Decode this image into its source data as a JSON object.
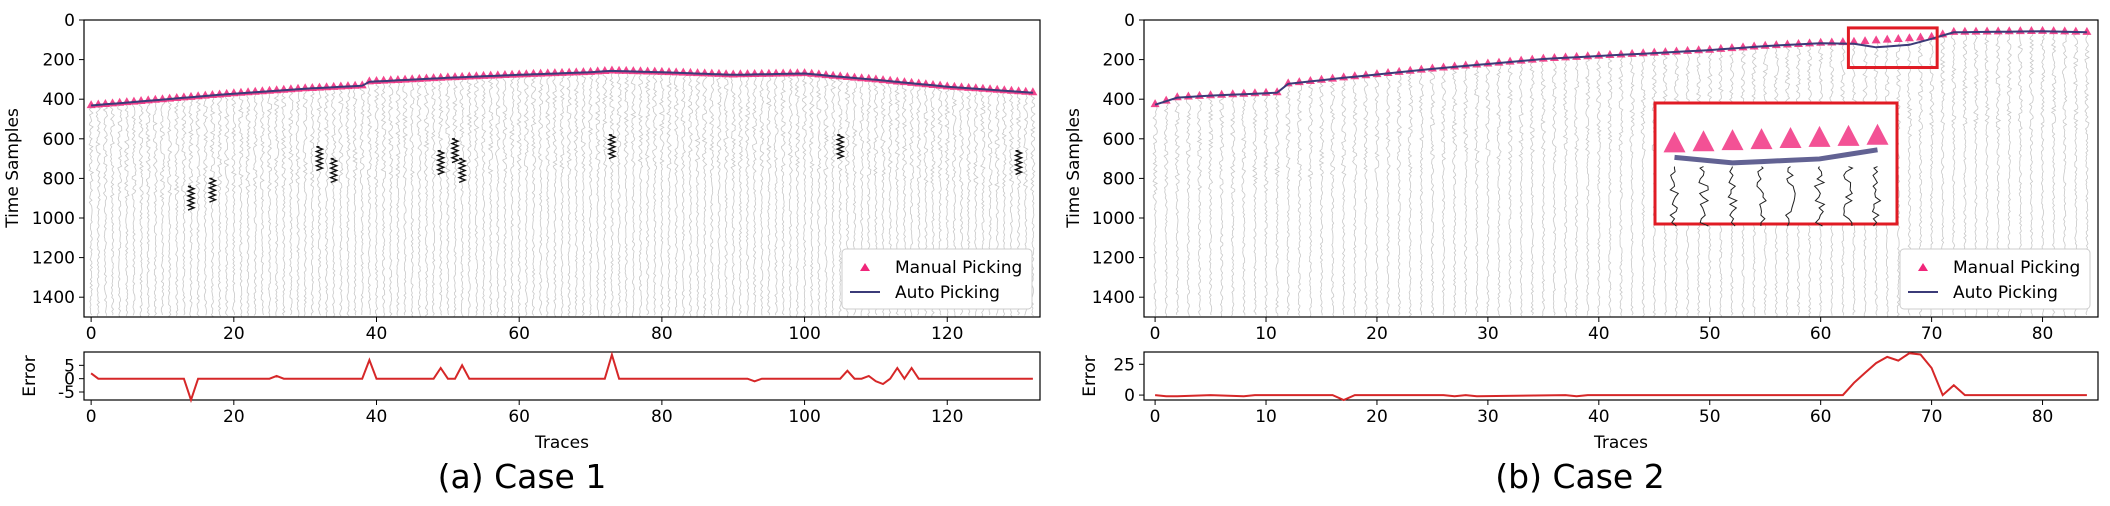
{
  "chart_data": [
    {
      "type": "line",
      "panel": "case1-main",
      "ylabel": "Time Samples",
      "xlabel": "",
      "xlim": [
        -1,
        133
      ],
      "ylim": [
        1500,
        0
      ],
      "xticks": [
        0,
        20,
        40,
        60,
        80,
        100,
        120
      ],
      "yticks": [
        0,
        200,
        400,
        600,
        800,
        1000,
        1200,
        1400
      ],
      "legend": {
        "position": "bottom-right",
        "entries": [
          "Manual Picking",
          "Auto Picking"
        ]
      },
      "n_traces": 133,
      "series": [
        {
          "name": "Manual Picking",
          "style": "triangle",
          "anchors_x": [
            0,
            10,
            20,
            30,
            38,
            39,
            50,
            60,
            70,
            73,
            80,
            90,
            100,
            105,
            110,
            120,
            132
          ],
          "anchors_y": [
            430,
            400,
            370,
            345,
            330,
            310,
            290,
            275,
            262,
            255,
            262,
            275,
            268,
            285,
            300,
            335,
            365
          ]
        },
        {
          "name": "Auto Picking",
          "style": "line",
          "anchors_x": [
            0,
            10,
            20,
            30,
            38,
            39,
            50,
            60,
            70,
            73,
            80,
            90,
            100,
            105,
            110,
            120,
            132
          ],
          "anchors_y": [
            432,
            402,
            372,
            347,
            332,
            312,
            292,
            277,
            264,
            257,
            264,
            277,
            270,
            287,
            302,
            337,
            367
          ]
        }
      ]
    },
    {
      "type": "line",
      "panel": "case1-error",
      "ylabel": "Error",
      "xlabel": "Traces",
      "xlim": [
        -1,
        133
      ],
      "ylim": [
        -8,
        10
      ],
      "xticks": [
        0,
        20,
        40,
        60,
        80,
        100,
        120
      ],
      "yticks": [
        5,
        0,
        -5
      ],
      "series": [
        {
          "name": "Error",
          "x": [
            0,
            1,
            13,
            14,
            15,
            25,
            26,
            27,
            38,
            39,
            40,
            48,
            49,
            50,
            51,
            52,
            53,
            72,
            73,
            74,
            92,
            93,
            94,
            105,
            106,
            107,
            108,
            109,
            110,
            111,
            112,
            113,
            114,
            115,
            116,
            132
          ],
          "y": [
            2,
            0,
            0,
            -8,
            0,
            0,
            1,
            0,
            0,
            7,
            0,
            0,
            4,
            0,
            0,
            5,
            0,
            0,
            9,
            0,
            0,
            -1,
            0,
            0,
            3,
            0,
            0,
            1,
            -1,
            -2,
            0,
            4,
            0,
            4,
            0,
            0
          ]
        }
      ]
    },
    {
      "type": "line",
      "panel": "case2-main",
      "ylabel": "Time Samples",
      "xlabel": "",
      "xlim": [
        -1,
        85
      ],
      "ylim": [
        1500,
        0
      ],
      "xticks": [
        0,
        10,
        20,
        30,
        40,
        50,
        60,
        70,
        80
      ],
      "yticks": [
        0,
        200,
        400,
        600,
        800,
        1000,
        1200,
        1400
      ],
      "legend": {
        "position": "bottom-right",
        "entries": [
          "Manual Picking",
          "Auto Picking"
        ]
      },
      "n_traces": 85,
      "zoom_box": {
        "x_range": [
          62.5,
          70.5
        ],
        "y_range": [
          40,
          240
        ]
      },
      "series": [
        {
          "name": "Manual Picking",
          "style": "triangle",
          "anchors_x": [
            0,
            2,
            5,
            11,
            12,
            17,
            25,
            35,
            45,
            50,
            55,
            60,
            63,
            70,
            72,
            80,
            84
          ],
          "anchors_y": [
            425,
            390,
            380,
            365,
            320,
            290,
            245,
            195,
            165,
            150,
            130,
            115,
            110,
            85,
            60,
            55,
            60
          ]
        },
        {
          "name": "Auto Picking",
          "style": "line",
          "anchors_x": [
            0,
            2,
            5,
            11,
            12,
            17,
            25,
            35,
            45,
            50,
            55,
            60,
            63,
            65,
            68,
            70,
            72,
            80,
            84
          ],
          "anchors_y": [
            428,
            392,
            382,
            367,
            322,
            292,
            247,
            197,
            167,
            152,
            132,
            117,
            120,
            138,
            125,
            95,
            62,
            57,
            62
          ]
        }
      ]
    },
    {
      "type": "line",
      "panel": "case2-error",
      "ylabel": "Error",
      "xlabel": "Traces",
      "xlim": [
        -1,
        85
      ],
      "ylim": [
        -4,
        35
      ],
      "xticks": [
        0,
        10,
        20,
        30,
        40,
        50,
        60,
        70,
        80
      ],
      "yticks": [
        25,
        0
      ],
      "series": [
        {
          "name": "Error",
          "x": [
            0,
            1,
            2,
            5,
            8,
            9,
            16,
            17,
            18,
            26,
            27,
            28,
            29,
            37,
            38,
            39,
            62,
            63,
            64,
            65,
            66,
            67,
            68,
            69,
            70,
            71,
            72,
            73,
            84
          ],
          "y": [
            0,
            -1,
            -1,
            0,
            -1,
            0,
            0,
            -4,
            0,
            0,
            -1,
            0,
            -1,
            0,
            -1,
            0,
            0,
            10,
            18,
            26,
            31,
            28,
            34,
            33,
            22,
            0,
            8,
            0,
            0
          ]
        }
      ]
    }
  ],
  "captions": {
    "case1": "(a) Case 1",
    "case2": "(b) Case 2"
  },
  "colors": {
    "manual": "#f0267a",
    "auto": "#3b3b78",
    "error": "#d62728",
    "zoom_box": "#e01b24"
  }
}
